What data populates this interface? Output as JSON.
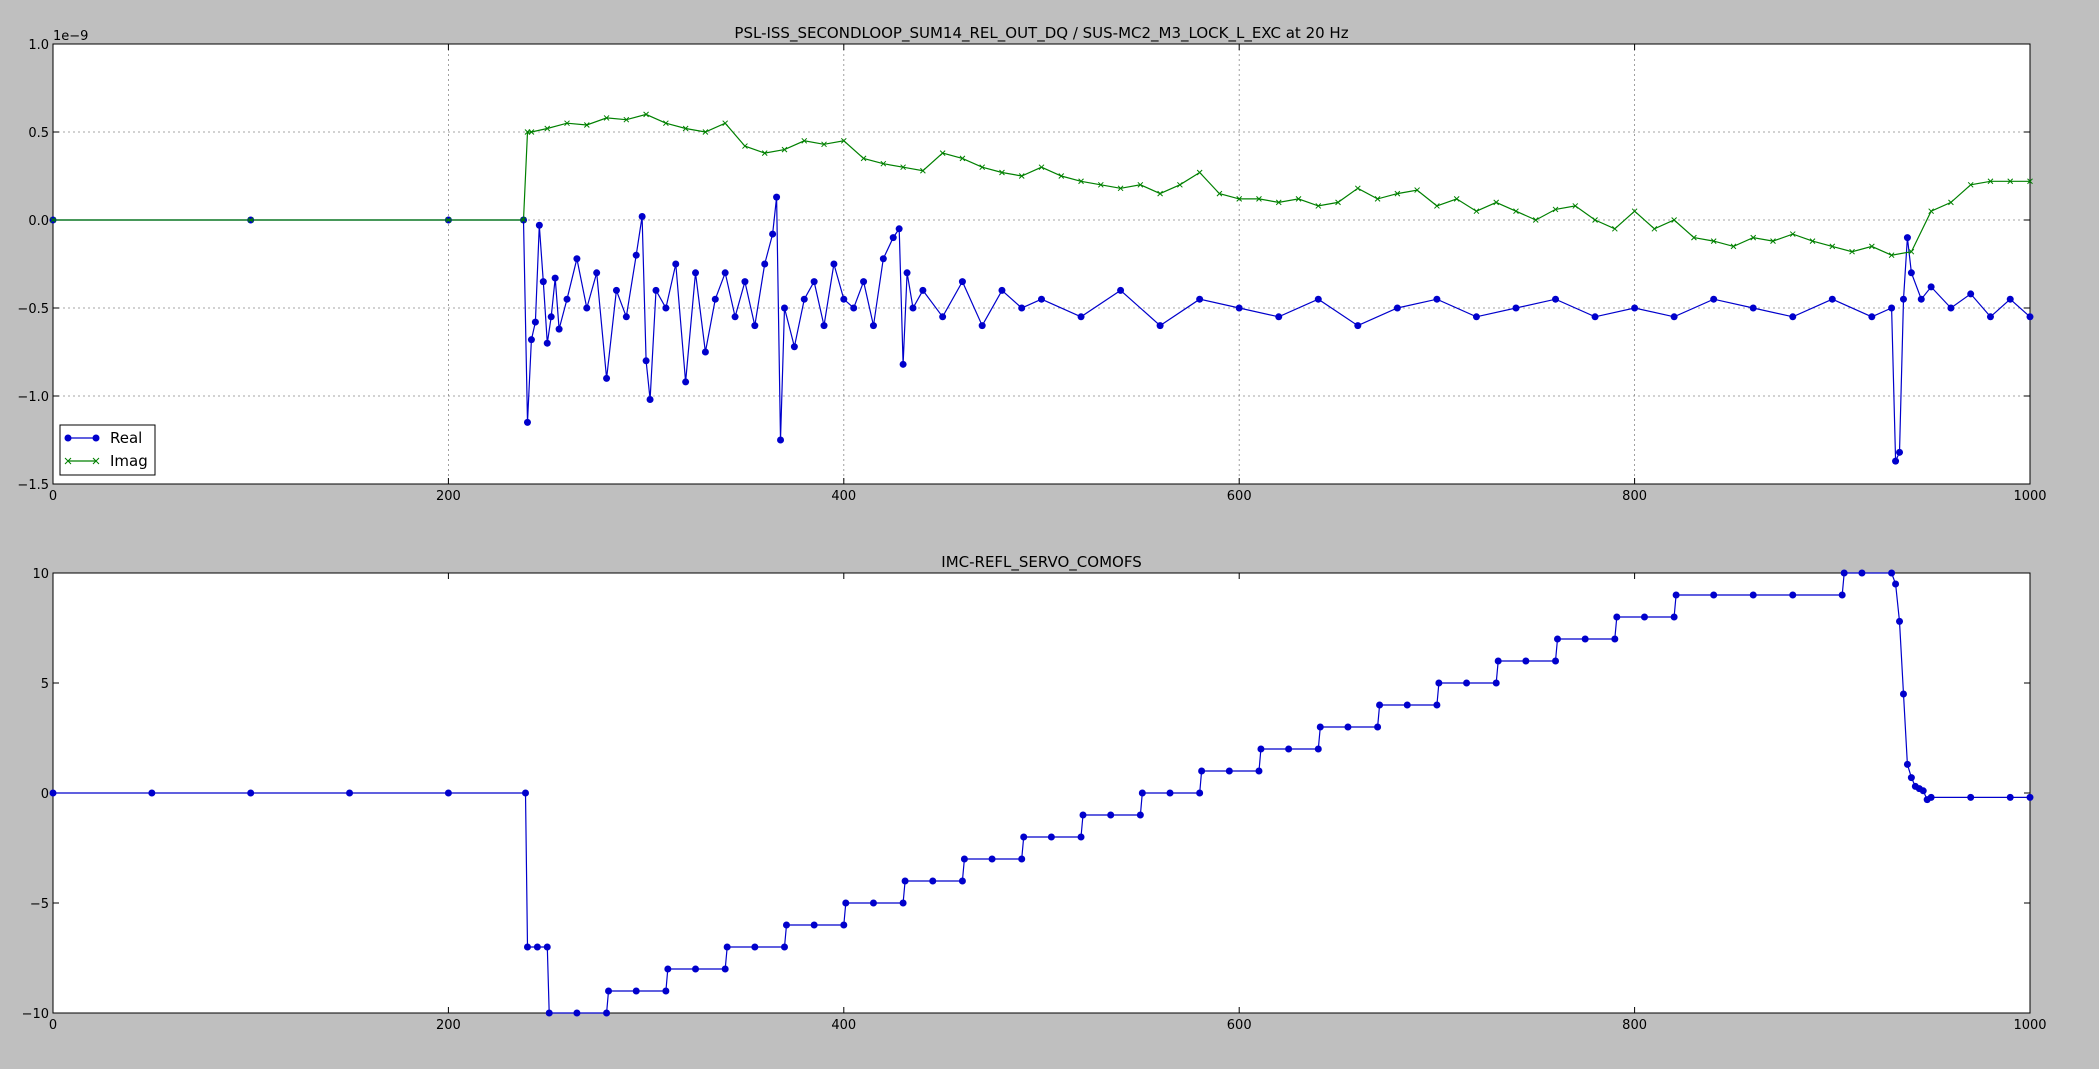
{
  "chart_data": [
    {
      "type": "line",
      "title": "PSL-ISS_SECONDLOOP_SUM14_REL_OUT_DQ / SUS-MC2_M3_LOCK_L_EXC at 20 Hz",
      "xlabel": "",
      "ylabel": "",
      "y_scale_label": "1e−9",
      "xlim": [
        0,
        1000
      ],
      "ylim": [
        -1.5,
        1.0
      ],
      "xticks": [
        0,
        200,
        400,
        600,
        800,
        1000
      ],
      "xtick_labels": [
        "0",
        "200",
        "400",
        "600",
        "800",
        "1000"
      ],
      "yticks": [
        -1.5,
        -1.0,
        -0.5,
        0.0,
        0.5,
        1.0
      ],
      "ytick_labels": [
        "−1.5",
        "−1.0",
        "−0.5",
        "0.0",
        "0.5",
        "1.0"
      ],
      "grid": true,
      "legend_position": "bottom-left",
      "series_colors": [
        "#0000cc",
        "#008000"
      ],
      "series": [
        {
          "name": "Real",
          "marker": "circle",
          "x": [
            0,
            100,
            200,
            238,
            240,
            242,
            244,
            246,
            248,
            250,
            252,
            254,
            256,
            260,
            265,
            270,
            275,
            280,
            285,
            290,
            295,
            298,
            300,
            302,
            305,
            310,
            315,
            320,
            325,
            330,
            335,
            340,
            345,
            350,
            355,
            360,
            364,
            366,
            368,
            370,
            375,
            380,
            385,
            390,
            395,
            400,
            405,
            410,
            415,
            420,
            425,
            428,
            430,
            432,
            435,
            440,
            450,
            460,
            470,
            480,
            490,
            500,
            520,
            540,
            560,
            580,
            600,
            620,
            640,
            660,
            680,
            700,
            720,
            740,
            760,
            780,
            800,
            820,
            840,
            860,
            880,
            900,
            920,
            930,
            932,
            934,
            936,
            938,
            940,
            945,
            950,
            960,
            970,
            980,
            990,
            1000
          ],
          "y": [
            0,
            0,
            0,
            0,
            -1.15,
            -0.68,
            -0.58,
            -0.03,
            -0.35,
            -0.7,
            -0.55,
            -0.33,
            -0.62,
            -0.45,
            -0.22,
            -0.5,
            -0.3,
            -0.9,
            -0.4,
            -0.55,
            -0.2,
            0.02,
            -0.8,
            -1.02,
            -0.4,
            -0.5,
            -0.25,
            -0.92,
            -0.3,
            -0.75,
            -0.45,
            -0.3,
            -0.55,
            -0.35,
            -0.6,
            -0.25,
            -0.08,
            0.13,
            -1.25,
            -0.5,
            -0.72,
            -0.45,
            -0.35,
            -0.6,
            -0.25,
            -0.45,
            -0.5,
            -0.35,
            -0.6,
            -0.22,
            -0.1,
            -0.05,
            -0.82,
            -0.3,
            -0.5,
            -0.4,
            -0.55,
            -0.35,
            -0.6,
            -0.4,
            -0.5,
            -0.45,
            -0.55,
            -0.4,
            -0.6,
            -0.45,
            -0.5,
            -0.55,
            -0.45,
            -0.6,
            -0.5,
            -0.45,
            -0.55,
            -0.5,
            -0.45,
            -0.55,
            -0.5,
            -0.55,
            -0.45,
            -0.5,
            -0.55,
            -0.45,
            -0.55,
            -0.5,
            -1.37,
            -1.32,
            -0.45,
            -0.1,
            -0.3,
            -0.45,
            -0.38,
            -0.5,
            -0.42,
            -0.55,
            -0.45,
            -0.55
          ]
        },
        {
          "name": "Imag",
          "marker": "x",
          "x": [
            0,
            100,
            200,
            238,
            240,
            242,
            250,
            260,
            270,
            280,
            290,
            300,
            310,
            320,
            330,
            340,
            350,
            360,
            370,
            380,
            390,
            400,
            410,
            420,
            430,
            440,
            450,
            460,
            470,
            480,
            490,
            500,
            510,
            520,
            530,
            540,
            550,
            560,
            570,
            580,
            590,
            600,
            610,
            620,
            630,
            640,
            650,
            660,
            670,
            680,
            690,
            700,
            710,
            720,
            730,
            740,
            750,
            760,
            770,
            780,
            790,
            800,
            810,
            820,
            830,
            840,
            850,
            860,
            870,
            880,
            890,
            900,
            910,
            920,
            930,
            940,
            950,
            960,
            970,
            980,
            990,
            1000
          ],
          "y": [
            0,
            0,
            0,
            0,
            0.5,
            0.5,
            0.52,
            0.55,
            0.54,
            0.58,
            0.57,
            0.6,
            0.55,
            0.52,
            0.5,
            0.55,
            0.42,
            0.38,
            0.4,
            0.45,
            0.43,
            0.45,
            0.35,
            0.32,
            0.3,
            0.28,
            0.38,
            0.35,
            0.3,
            0.27,
            0.25,
            0.3,
            0.25,
            0.22,
            0.2,
            0.18,
            0.2,
            0.15,
            0.2,
            0.27,
            0.15,
            0.12,
            0.12,
            0.1,
            0.12,
            0.08,
            0.1,
            0.18,
            0.12,
            0.15,
            0.17,
            0.08,
            0.12,
            0.05,
            0.1,
            0.05,
            0.0,
            0.06,
            0.08,
            0.0,
            -0.05,
            0.05,
            -0.05,
            0.0,
            -0.1,
            -0.12,
            -0.15,
            -0.1,
            -0.12,
            -0.08,
            -0.12,
            -0.15,
            -0.18,
            -0.15,
            -0.2,
            -0.18,
            0.05,
            0.1,
            0.2,
            0.22,
            0.22,
            0.22
          ]
        }
      ]
    },
    {
      "type": "line",
      "title": "IMC-REFL_SERVO_COMOFS",
      "xlabel": "",
      "ylabel": "",
      "xlim": [
        0,
        1000
      ],
      "ylim": [
        -10,
        10
      ],
      "xticks": [
        0,
        200,
        400,
        600,
        800,
        1000
      ],
      "xtick_labels": [
        "0",
        "200",
        "400",
        "600",
        "800",
        "1000"
      ],
      "yticks": [
        -10,
        -5,
        0,
        5,
        10
      ],
      "ytick_labels": [
        "−10",
        "−5",
        "0",
        "5",
        "10"
      ],
      "grid": false,
      "series_colors": [
        "#0000cc"
      ],
      "series": [
        {
          "name": "",
          "marker": "circle",
          "x": [
            0,
            50,
            100,
            150,
            200,
            239,
            240,
            245,
            250,
            251,
            265,
            280,
            281,
            295,
            310,
            311,
            325,
            340,
            341,
            355,
            370,
            371,
            385,
            400,
            401,
            415,
            430,
            431,
            445,
            460,
            461,
            475,
            490,
            491,
            505,
            520,
            521,
            535,
            550,
            551,
            565,
            580,
            581,
            595,
            610,
            611,
            625,
            640,
            641,
            655,
            670,
            671,
            685,
            700,
            701,
            715,
            730,
            731,
            745,
            760,
            761,
            775,
            790,
            791,
            805,
            820,
            821,
            840,
            860,
            880,
            905,
            906,
            915,
            930,
            932,
            934,
            936,
            938,
            940,
            942,
            944,
            946,
            948,
            950,
            970,
            990,
            1000
          ],
          "y": [
            0,
            0,
            0,
            0,
            0,
            0,
            -7,
            -7,
            -7,
            -10,
            -10,
            -10,
            -9,
            -9,
            -9,
            -8,
            -8,
            -8,
            -7,
            -7,
            -7,
            -6,
            -6,
            -6,
            -5,
            -5,
            -5,
            -4,
            -4,
            -4,
            -3,
            -3,
            -3,
            -2,
            -2,
            -2,
            -1,
            -1,
            -1,
            0,
            0,
            0,
            1,
            1,
            1,
            2,
            2,
            2,
            3,
            3,
            3,
            4,
            4,
            4,
            5,
            5,
            5,
            6,
            6,
            6,
            7,
            7,
            7,
            8,
            8,
            8,
            9,
            9,
            9,
            9,
            9,
            10,
            10,
            10,
            9.5,
            7.8,
            4.5,
            1.3,
            0.7,
            0.3,
            0.2,
            0.1,
            -0.3,
            -0.2,
            -0.2,
            -0.2,
            -0.2
          ]
        }
      ]
    }
  ]
}
